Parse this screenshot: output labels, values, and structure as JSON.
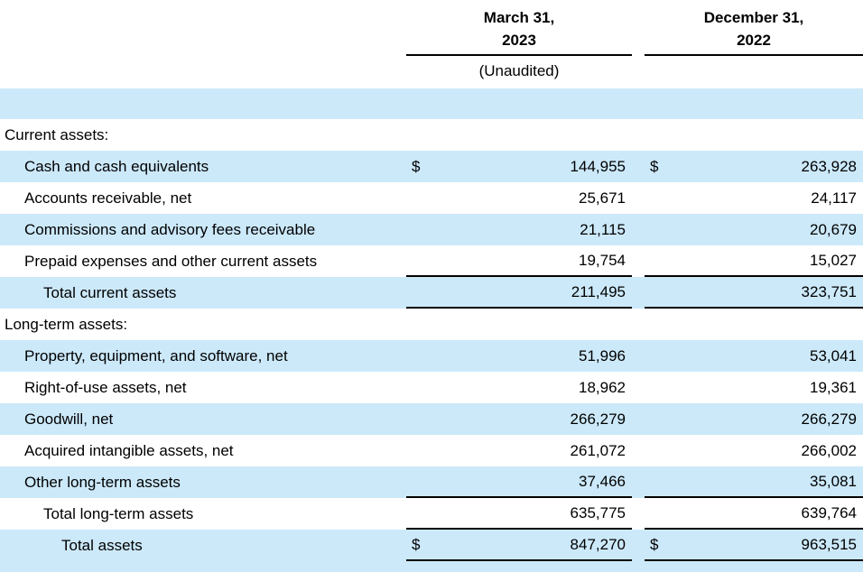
{
  "table": {
    "currency_symbol": "$",
    "colors": {
      "row_highlight": "#cce9fa",
      "rule": "#000000",
      "text": "#000000"
    },
    "columns": [
      {
        "header_line1": "March 31,",
        "header_line2": "2023",
        "subheader": "(Unaudited)"
      },
      {
        "header_line1": "December 31,",
        "header_line2": "2022",
        "subheader": ""
      }
    ],
    "rows": [
      {
        "type": "spacer-band",
        "bg": "highlight",
        "label": "",
        "v1": "",
        "v2": ""
      },
      {
        "label": "Current assets:",
        "indent": 0,
        "bg": "white",
        "v1": "",
        "v2": ""
      },
      {
        "label": "Cash and cash equivalents",
        "indent": 1,
        "bg": "highlight",
        "dollar": true,
        "v1": "144,955",
        "v2": "263,928"
      },
      {
        "label": "Accounts receivable, net",
        "indent": 1,
        "bg": "white",
        "v1": "25,671",
        "v2": "24,117"
      },
      {
        "label": "Commissions and advisory fees receivable",
        "indent": 1,
        "bg": "highlight",
        "v1": "21,115",
        "v2": "20,679"
      },
      {
        "label": "Prepaid expenses and other current assets",
        "indent": 1,
        "bg": "white",
        "v1": "19,754",
        "v2": "15,027",
        "underline": true
      },
      {
        "label": "Total current assets",
        "indent": 2,
        "bg": "highlight",
        "v1": "211,495",
        "v2": "323,751",
        "underline": true
      },
      {
        "label": "Long-term assets:",
        "indent": 0,
        "bg": "white",
        "v1": "",
        "v2": ""
      },
      {
        "label": "Property, equipment, and software, net",
        "indent": 1,
        "bg": "highlight",
        "v1": "51,996",
        "v2": "53,041"
      },
      {
        "label": "Right-of-use assets, net",
        "indent": 1,
        "bg": "white",
        "v1": "18,962",
        "v2": "19,361"
      },
      {
        "label": "Goodwill, net",
        "indent": 1,
        "bg": "highlight",
        "v1": "266,279",
        "v2": "266,279"
      },
      {
        "label": "Acquired intangible assets, net",
        "indent": 1,
        "bg": "white",
        "v1": "261,072",
        "v2": "266,002"
      },
      {
        "label": "Other long-term assets",
        "indent": 1,
        "bg": "highlight",
        "v1": "37,466",
        "v2": "35,081",
        "underline": true
      },
      {
        "label": "Total long-term assets",
        "indent": 2,
        "bg": "white",
        "v1": "635,775",
        "v2": "639,764",
        "underline": true
      },
      {
        "label": "Total assets",
        "indent": 3,
        "bg": "highlight",
        "dollar": true,
        "v1": "847,270",
        "v2": "963,515",
        "underline": true
      },
      {
        "type": "spacer-band-bottom",
        "bg": "highlight",
        "label": "",
        "v1": "",
        "v2": ""
      }
    ]
  }
}
